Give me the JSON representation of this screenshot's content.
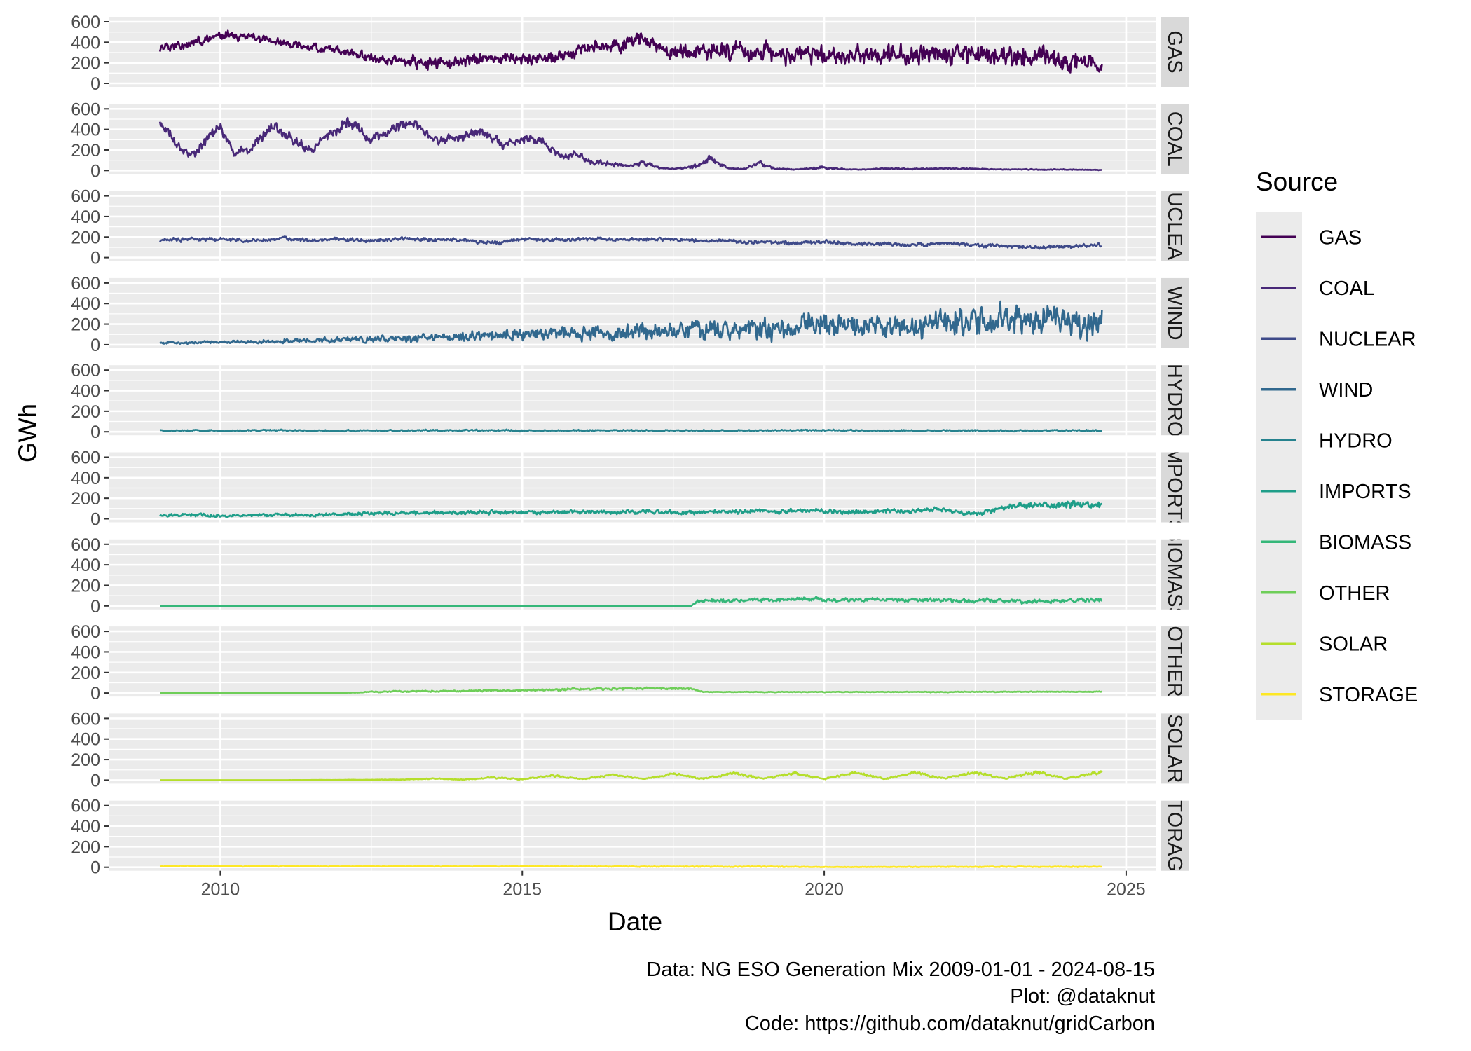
{
  "chart_data": {
    "type": "line",
    "xlabel": "Date",
    "ylabel": "GWh",
    "ylim": [
      0,
      600
    ],
    "y_ticks": [
      0,
      200,
      400,
      600
    ],
    "x_ticks": [
      2010,
      2015,
      2020,
      2025
    ],
    "xlim": [
      2008.15,
      2025.5
    ],
    "facet_layout": "stacked rows, shared x axis, strip labels on right",
    "grid": true,
    "legend": {
      "title": "Source",
      "placement": "right"
    },
    "caption": [
      "Data: NG ESO Generation Mix 2009-01-01 - 2024-08-15",
      "Plot: @dataknut",
      "Code: https://github.com/dataknut/gridCarbon"
    ],
    "series": [
      {
        "name": "GAS",
        "strip": "GAS",
        "color": "#440154",
        "x": [
          2009.0,
          2009.5,
          2010.0,
          2010.5,
          2011.0,
          2011.5,
          2012.0,
          2012.5,
          2013.0,
          2013.5,
          2014.0,
          2014.5,
          2015.0,
          2015.5,
          2016.0,
          2016.5,
          2017.0,
          2017.5,
          2018.0,
          2018.5,
          2019.0,
          2019.5,
          2020.0,
          2020.5,
          2021.0,
          2021.5,
          2022.0,
          2022.5,
          2023.0,
          2023.5,
          2024.0,
          2024.6
        ],
        "y": [
          350,
          380,
          480,
          450,
          400,
          360,
          320,
          250,
          220,
          200,
          220,
          250,
          230,
          250,
          330,
          350,
          420,
          300,
          310,
          320,
          300,
          280,
          260,
          270,
          280,
          270,
          300,
          280,
          260,
          250,
          240,
          170
        ],
        "spread": [
          70,
          50,
          60,
          50,
          50,
          50,
          60,
          70,
          80,
          80,
          80,
          70,
          70,
          80,
          90,
          90,
          100,
          110,
          120,
          120,
          120,
          130,
          130,
          130,
          140,
          140,
          150,
          150,
          160,
          160,
          150,
          110
        ]
      },
      {
        "name": "COAL",
        "strip": "COAL",
        "color": "#482878",
        "x": [
          2009.0,
          2009.25,
          2009.5,
          2009.8,
          2010.0,
          2010.25,
          2010.5,
          2010.9,
          2011.2,
          2011.5,
          2011.9,
          2012.1,
          2012.5,
          2012.9,
          2013.2,
          2013.6,
          2013.9,
          2014.3,
          2014.7,
          2015.0,
          2015.3,
          2015.6,
          2015.9,
          2016.2,
          2016.5,
          2016.8,
          2017.0,
          2017.3,
          2017.6,
          2017.9,
          2018.1,
          2018.4,
          2018.7,
          2018.9,
          2019.2,
          2019.6,
          2020.0,
          2020.4,
          2020.7,
          2021.0,
          2021.5,
          2022.0,
          2022.5,
          2023.0,
          2023.5,
          2024.0,
          2024.6
        ],
        "y": [
          480,
          250,
          150,
          300,
          420,
          180,
          220,
          430,
          300,
          200,
          400,
          480,
          300,
          420,
          460,
          280,
          320,
          380,
          250,
          310,
          280,
          150,
          160,
          80,
          60,
          40,
          80,
          20,
          20,
          40,
          120,
          20,
          15,
          70,
          15,
          10,
          30,
          10,
          10,
          20,
          15,
          20,
          15,
          10,
          10,
          10,
          5
        ],
        "spread": [
          80,
          70,
          60,
          80,
          80,
          60,
          60,
          80,
          70,
          60,
          80,
          80,
          70,
          70,
          70,
          60,
          60,
          60,
          60,
          60,
          60,
          50,
          50,
          40,
          30,
          20,
          40,
          10,
          10,
          30,
          60,
          10,
          8,
          40,
          8,
          6,
          20,
          5,
          5,
          10,
          8,
          10,
          8,
          6,
          6,
          6,
          4
        ]
      },
      {
        "name": "NUCLEAR",
        "strip": "NUCLEAR",
        "color": "#3e4a89",
        "x": [
          2009.0,
          2009.5,
          2010.0,
          2010.5,
          2011.0,
          2011.5,
          2012.0,
          2012.5,
          2013.0,
          2013.5,
          2014.0,
          2014.5,
          2015.0,
          2015.5,
          2016.0,
          2016.5,
          2017.0,
          2017.5,
          2018.0,
          2018.5,
          2019.0,
          2019.5,
          2020.0,
          2020.5,
          2021.0,
          2021.5,
          2022.0,
          2022.5,
          2023.0,
          2023.5,
          2024.0,
          2024.6
        ],
        "y": [
          160,
          180,
          180,
          160,
          185,
          170,
          180,
          165,
          185,
          175,
          170,
          140,
          180,
          170,
          180,
          175,
          180,
          170,
          165,
          160,
          150,
          140,
          155,
          130,
          135,
          120,
          140,
          120,
          110,
          100,
          110,
          120
        ],
        "spread": [
          30,
          25,
          25,
          25,
          25,
          25,
          25,
          25,
          25,
          25,
          25,
          30,
          25,
          25,
          25,
          25,
          25,
          25,
          25,
          25,
          25,
          25,
          25,
          25,
          25,
          25,
          25,
          25,
          25,
          25,
          25,
          25
        ]
      },
      {
        "name": "WIND",
        "strip": "WIND",
        "color": "#31688e",
        "x": [
          2009.0,
          2009.5,
          2010.0,
          2010.5,
          2011.0,
          2011.5,
          2012.0,
          2012.5,
          2013.0,
          2013.5,
          2014.0,
          2014.5,
          2015.0,
          2015.5,
          2016.0,
          2016.5,
          2017.0,
          2017.5,
          2018.0,
          2018.5,
          2019.0,
          2019.5,
          2020.0,
          2020.5,
          2021.0,
          2021.5,
          2022.0,
          2022.5,
          2023.0,
          2023.5,
          2024.0,
          2024.6
        ],
        "y": [
          20,
          20,
          25,
          25,
          35,
          40,
          50,
          55,
          65,
          70,
          90,
          80,
          110,
          100,
          120,
          110,
          140,
          130,
          160,
          150,
          170,
          160,
          200,
          170,
          190,
          180,
          230,
          200,
          230,
          210,
          240,
          200
        ],
        "spread": [
          15,
          15,
          20,
          20,
          30,
          30,
          40,
          45,
          55,
          60,
          70,
          70,
          90,
          90,
          100,
          100,
          120,
          110,
          140,
          130,
          150,
          140,
          170,
          150,
          170,
          160,
          200,
          180,
          210,
          190,
          220,
          180
        ]
      },
      {
        "name": "HYDRO",
        "strip": "HYDRO",
        "color": "#26828e",
        "x": [
          2009.0,
          2010.0,
          2011.0,
          2012.0,
          2013.0,
          2014.0,
          2015.0,
          2016.0,
          2017.0,
          2018.0,
          2019.0,
          2020.0,
          2021.0,
          2022.0,
          2023.0,
          2024.0,
          2024.6
        ],
        "y": [
          12,
          10,
          14,
          10,
          12,
          14,
          12,
          14,
          12,
          10,
          12,
          14,
          10,
          12,
          10,
          12,
          10
        ],
        "spread": [
          10,
          10,
          10,
          10,
          10,
          10,
          10,
          10,
          10,
          10,
          10,
          10,
          10,
          10,
          10,
          10,
          10
        ]
      },
      {
        "name": "IMPORTS",
        "strip": "IMPORTS",
        "color": "#1f9e89",
        "x": [
          2009.0,
          2009.5,
          2010.0,
          2010.5,
          2011.0,
          2011.5,
          2012.0,
          2012.5,
          2013.0,
          2013.5,
          2014.0,
          2014.5,
          2015.0,
          2015.5,
          2016.0,
          2016.5,
          2017.0,
          2017.5,
          2018.0,
          2018.5,
          2019.0,
          2019.5,
          2020.0,
          2020.5,
          2021.0,
          2021.5,
          2022.0,
          2022.3,
          2022.6,
          2023.0,
          2023.5,
          2024.0,
          2024.6
        ],
        "y": [
          30,
          40,
          30,
          35,
          40,
          35,
          45,
          50,
          55,
          60,
          60,
          65,
          65,
          60,
          70,
          60,
          70,
          60,
          65,
          70,
          75,
          70,
          80,
          65,
          80,
          75,
          95,
          50,
          60,
          110,
          130,
          140,
          130
        ],
        "spread": [
          20,
          25,
          20,
          20,
          20,
          20,
          25,
          25,
          25,
          25,
          25,
          25,
          25,
          25,
          25,
          25,
          25,
          25,
          25,
          25,
          30,
          30,
          30,
          30,
          30,
          30,
          30,
          25,
          30,
          40,
          40,
          50,
          50
        ]
      },
      {
        "name": "BIOMASS",
        "strip": "BIOMASS",
        "color": "#35b779",
        "x": [
          2009.0,
          2012.0,
          2015.0,
          2017.8,
          2017.9,
          2018.3,
          2018.8,
          2019.3,
          2019.8,
          2020.3,
          2020.8,
          2021.3,
          2021.8,
          2022.3,
          2022.8,
          2023.3,
          2023.8,
          2024.3,
          2024.6
        ],
        "y": [
          0,
          0,
          0,
          0,
          45,
          50,
          60,
          55,
          70,
          55,
          65,
          55,
          60,
          50,
          55,
          40,
          50,
          55,
          60
        ],
        "spread": [
          0,
          0,
          0,
          0,
          25,
          25,
          25,
          25,
          25,
          25,
          25,
          25,
          25,
          25,
          25,
          25,
          25,
          25,
          25
        ]
      },
      {
        "name": "OTHER",
        "strip": "OTHER",
        "color": "#6ece58",
        "x": [
          2009.0,
          2011.0,
          2012.0,
          2012.5,
          2013.0,
          2014.0,
          2014.5,
          2015.0,
          2015.5,
          2016.0,
          2016.5,
          2017.0,
          2017.5,
          2017.8,
          2018.0,
          2019.0,
          2020.0,
          2021.0,
          2022.0,
          2023.0,
          2024.0,
          2024.6
        ],
        "y": [
          0,
          0,
          0,
          10,
          15,
          20,
          25,
          25,
          30,
          40,
          40,
          45,
          45,
          40,
          10,
          10,
          10,
          10,
          10,
          12,
          12,
          12
        ],
        "spread": [
          0,
          0,
          0,
          8,
          10,
          10,
          12,
          12,
          15,
          15,
          15,
          15,
          15,
          15,
          5,
          5,
          5,
          5,
          5,
          5,
          5,
          5
        ]
      },
      {
        "name": "SOLAR",
        "strip": "SOLAR",
        "color": "#b5de2b",
        "x": [
          2009.0,
          2011.0,
          2012.0,
          2013.0,
          2013.5,
          2014.0,
          2014.5,
          2015.0,
          2015.5,
          2016.0,
          2016.5,
          2017.0,
          2017.5,
          2018.0,
          2018.5,
          2019.0,
          2019.5,
          2020.0,
          2020.5,
          2021.0,
          2021.5,
          2022.0,
          2022.5,
          2023.0,
          2023.5,
          2024.0,
          2024.6
        ],
        "y": [
          0,
          0,
          2,
          5,
          15,
          5,
          25,
          8,
          45,
          10,
          55,
          10,
          60,
          12,
          65,
          12,
          65,
          12,
          70,
          12,
          70,
          15,
          75,
          15,
          80,
          15,
          75
        ],
        "spread": [
          0,
          0,
          2,
          3,
          8,
          4,
          12,
          6,
          15,
          6,
          15,
          6,
          18,
          8,
          18,
          8,
          18,
          8,
          20,
          8,
          20,
          10,
          20,
          10,
          25,
          10,
          25
        ]
      },
      {
        "name": "STORAGE",
        "strip": "STORAGE",
        "color": "#fde725",
        "x": [
          2009.0,
          2011.0,
          2013.0,
          2015.0,
          2017.0,
          2019.0,
          2020.0,
          2021.0,
          2023.0,
          2024.6
        ],
        "y": [
          12,
          10,
          10,
          10,
          8,
          6,
          2,
          3,
          5,
          5
        ],
        "spread": [
          8,
          6,
          6,
          6,
          6,
          6,
          4,
          4,
          6,
          6
        ]
      }
    ]
  }
}
